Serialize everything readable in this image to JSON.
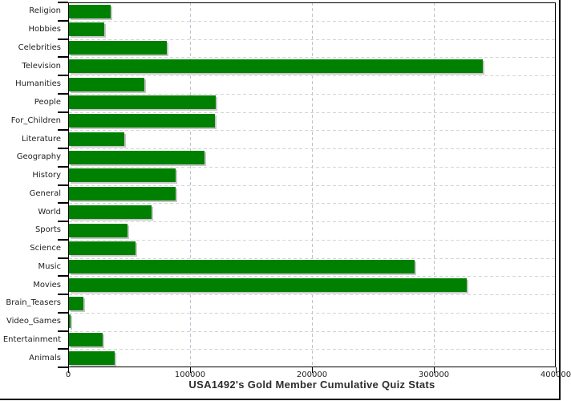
{
  "chart_data": {
    "type": "bar",
    "orientation": "horizontal",
    "title": "USA1492's Gold Member Cumulative Quiz Stats",
    "categories": [
      "Religion",
      "Hobbies",
      "Celebrities",
      "Television",
      "Humanities",
      "People",
      "For_Children",
      "Literature",
      "Geography",
      "History",
      "General",
      "World",
      "Sports",
      "Science",
      "Music",
      "Movies",
      "Brain_Teasers",
      "Video_Games",
      "Entertainment",
      "Animals"
    ],
    "values": [
      34200,
      28700,
      80400,
      339500,
      62000,
      120400,
      119800,
      45300,
      111000,
      87800,
      87800,
      67700,
      48000,
      54700,
      283700,
      326000,
      11800,
      1400,
      27500,
      37800
    ],
    "xlabel": "",
    "ylabel": "",
    "x_axis": {
      "min": 0,
      "max": 400000,
      "tick_interval": 100000,
      "tick_labels": [
        "0",
        "100000",
        "200000",
        "300000",
        "400000"
      ]
    },
    "grid": {
      "horizontal": "on",
      "vertical": "on",
      "style": "dashed",
      "vertical_color": "#b9c4ce",
      "horizontal_color": "#d4d4d4"
    },
    "legend": "none",
    "colors": {
      "bar": "#008000",
      "bar_shadow": "#c6c6c6",
      "plot_border": "#000000",
      "title_text": "#2d2d2d",
      "label_text": "#1f1f1f",
      "background": "#ffffff"
    }
  }
}
